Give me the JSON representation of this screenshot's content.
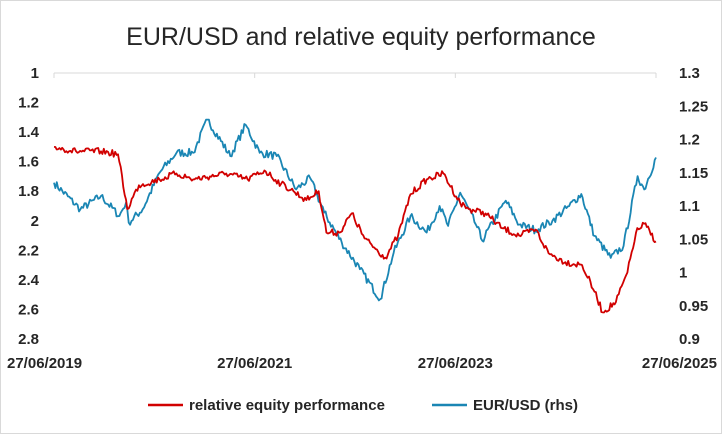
{
  "chart_data": {
    "type": "line",
    "title": "EUR/USD and relative equity performance",
    "x_axis": {
      "type": "date",
      "ticks": [
        "27/06/2019",
        "27/06/2021",
        "27/06/2023",
        "27/06/2025"
      ],
      "range": [
        "2019-06-27",
        "2025-06-27"
      ]
    },
    "y_left": {
      "ticks": [
        "1",
        "1.2",
        "1.4",
        "1.6",
        "1.8",
        "2",
        "2.2",
        "2.4",
        "2.6",
        "2.8"
      ],
      "range": [
        1,
        2.8
      ],
      "inverted": true
    },
    "y_right": {
      "ticks": [
        "1.3",
        "1.25",
        "1.2",
        "1.15",
        "1.1",
        "1.05",
        "1",
        "0.95",
        "0.9"
      ],
      "range": [
        0.9,
        1.3
      ]
    },
    "gridlines": false,
    "legend_position": "bottom",
    "series": [
      {
        "name": "relative equity performance",
        "axis": "left",
        "color": "#d10000",
        "points": [
          [
            "2019-06-27",
            1.5
          ],
          [
            "2019-09-15",
            1.53
          ],
          [
            "2019-12-15",
            1.53
          ],
          [
            "2020-02-15",
            1.55
          ],
          [
            "2020-03-20",
            1.92
          ],
          [
            "2020-05-01",
            1.76
          ],
          [
            "2020-07-15",
            1.72
          ],
          [
            "2020-09-15",
            1.68
          ],
          [
            "2020-11-15",
            1.72
          ],
          [
            "2021-01-15",
            1.7
          ],
          [
            "2021-03-15",
            1.68
          ],
          [
            "2021-06-01",
            1.72
          ],
          [
            "2021-08-01",
            1.66
          ],
          [
            "2021-10-01",
            1.75
          ],
          [
            "2021-11-15",
            1.8
          ],
          [
            "2022-01-01",
            1.86
          ],
          [
            "2022-02-15",
            1.8
          ],
          [
            "2022-03-15",
            2.08
          ],
          [
            "2022-05-01",
            2.08
          ],
          [
            "2022-06-15",
            1.95
          ],
          [
            "2022-08-01",
            2.12
          ],
          [
            "2022-10-15",
            2.25
          ],
          [
            "2022-12-01",
            2.1
          ],
          [
            "2023-01-15",
            1.82
          ],
          [
            "2023-03-15",
            1.72
          ],
          [
            "2023-05-15",
            1.68
          ],
          [
            "2023-07-15",
            1.88
          ],
          [
            "2023-08-15",
            1.92
          ],
          [
            "2023-10-15",
            1.95
          ],
          [
            "2023-12-15",
            2.05
          ],
          [
            "2024-02-15",
            2.1
          ],
          [
            "2024-04-15",
            2.06
          ],
          [
            "2024-06-01",
            2.22
          ],
          [
            "2024-08-01",
            2.28
          ],
          [
            "2024-10-01",
            2.3
          ],
          [
            "2024-11-15",
            2.48
          ],
          [
            "2024-12-15",
            2.62
          ],
          [
            "2025-02-01",
            2.55
          ],
          [
            "2025-03-15",
            2.35
          ],
          [
            "2025-04-15",
            2.08
          ],
          [
            "2025-05-15",
            2.02
          ],
          [
            "2025-06-27",
            2.14
          ]
        ]
      },
      {
        "name": "EUR/USD (rhs)",
        "axis": "right",
        "color": "#1a86b4",
        "points": [
          [
            "2019-06-27",
            1.135
          ],
          [
            "2019-10-01",
            1.095
          ],
          [
            "2019-12-15",
            1.115
          ],
          [
            "2020-02-20",
            1.085
          ],
          [
            "2020-03-15",
            1.105
          ],
          [
            "2020-03-25",
            1.075
          ],
          [
            "2020-05-15",
            1.095
          ],
          [
            "2020-07-15",
            1.15
          ],
          [
            "2020-09-15",
            1.18
          ],
          [
            "2020-11-15",
            1.18
          ],
          [
            "2021-01-06",
            1.23
          ],
          [
            "2021-03-30",
            1.175
          ],
          [
            "2021-05-25",
            1.222
          ],
          [
            "2021-07-15",
            1.18
          ],
          [
            "2021-09-15",
            1.175
          ],
          [
            "2021-11-25",
            1.125
          ],
          [
            "2022-01-15",
            1.142
          ],
          [
            "2022-03-07",
            1.09
          ],
          [
            "2022-05-10",
            1.045
          ],
          [
            "2022-07-15",
            1.005
          ],
          [
            "2022-09-27",
            0.96
          ],
          [
            "2022-11-15",
            1.03
          ],
          [
            "2023-01-15",
            1.085
          ],
          [
            "2023-03-15",
            1.06
          ],
          [
            "2023-05-01",
            1.1
          ],
          [
            "2023-06-01",
            1.07
          ],
          [
            "2023-07-15",
            1.12
          ],
          [
            "2023-09-15",
            1.068
          ],
          [
            "2023-10-03",
            1.048
          ],
          [
            "2023-12-28",
            1.108
          ],
          [
            "2024-02-15",
            1.072
          ],
          [
            "2024-04-15",
            1.064
          ],
          [
            "2024-06-15",
            1.078
          ],
          [
            "2024-08-15",
            1.1
          ],
          [
            "2024-09-28",
            1.118
          ],
          [
            "2024-11-15",
            1.055
          ],
          [
            "2025-01-13",
            1.022
          ],
          [
            "2025-03-01",
            1.04
          ],
          [
            "2025-04-21",
            1.145
          ],
          [
            "2025-05-15",
            1.125
          ],
          [
            "2025-06-27",
            1.173
          ]
        ]
      }
    ]
  }
}
